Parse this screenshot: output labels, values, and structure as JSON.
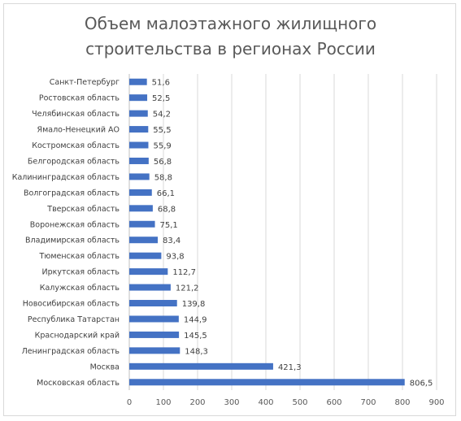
{
  "chart_data": {
    "type": "bar",
    "orientation": "horizontal",
    "title_lines": [
      "Объем малоэтажного жилищного",
      "строительства в регионах России"
    ],
    "categories": [
      "Санкт-Петербург",
      "Ростовская область",
      "Челябинская область",
      "Ямало-Ненецкий АО",
      "Костромская область",
      "Белгородская область",
      "Калининградская область",
      "Волгоградская область",
      "Тверская область",
      "Воронежская область",
      "Владимирская область",
      "Тюменская область",
      "Иркутская область",
      "Калужская область",
      "Новосибирская область",
      "Республика Татарстан",
      "Краснодарский край",
      "Ленинградская область",
      "Москва",
      "Московская область"
    ],
    "values": [
      51.6,
      52.5,
      54.2,
      55.5,
      55.9,
      56.8,
      58.8,
      66.1,
      68.8,
      75.1,
      83.4,
      93.8,
      112.7,
      121.2,
      139.8,
      144.9,
      145.5,
      148.3,
      421.3,
      806.5
    ],
    "value_labels": [
      "51,6",
      "52,5",
      "54,2",
      "55,5",
      "55,9",
      "56,8",
      "58,8",
      "66,1",
      "68,8",
      "75,1",
      "83,4",
      "93,8",
      "112,7",
      "121,2",
      "139,8",
      "144,9",
      "145,5",
      "148,3",
      "421,3",
      "806,5"
    ],
    "xlim": [
      0,
      900
    ],
    "x_ticks": [
      0,
      100,
      200,
      300,
      400,
      500,
      600,
      700,
      800,
      900
    ],
    "grid": "vertical",
    "bar_color": "#4472c4"
  }
}
